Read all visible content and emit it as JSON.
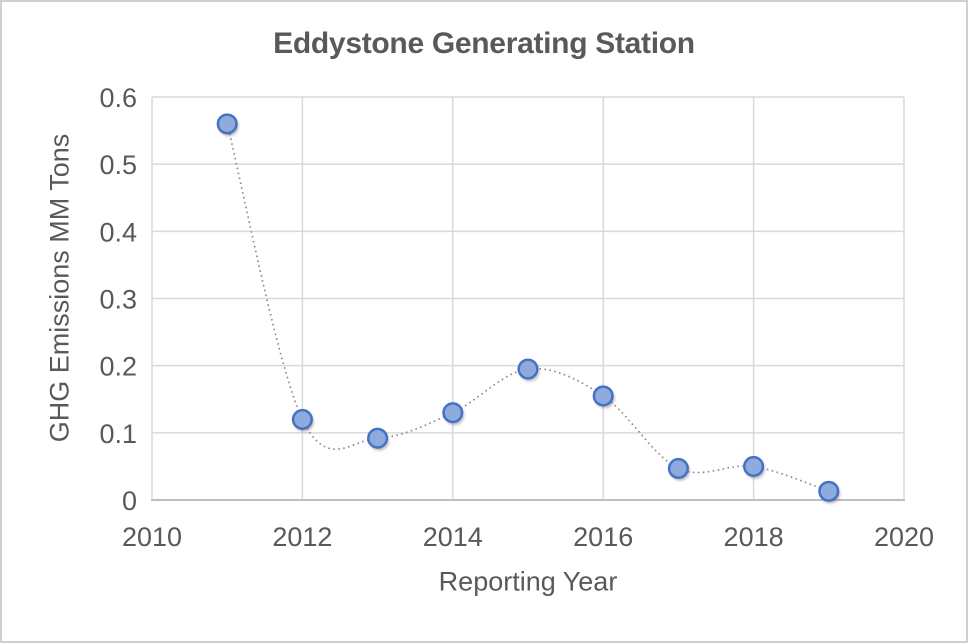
{
  "chart_data": {
    "type": "scatter",
    "title": "Eddystone Generating Station",
    "xlabel": "Reporting Year",
    "ylabel": "GHG Emissions MM Tons",
    "x": [
      2011,
      2012,
      2013,
      2014,
      2015,
      2016,
      2017,
      2018,
      2019
    ],
    "y": [
      0.56,
      0.12,
      0.092,
      0.13,
      0.195,
      0.155,
      0.047,
      0.05,
      0.013
    ],
    "xlim": [
      2010,
      2020
    ],
    "ylim": [
      0,
      0.6
    ],
    "x_ticks": [
      2010,
      2012,
      2014,
      2016,
      2018,
      2020
    ],
    "y_ticks": [
      0,
      0.1,
      0.2,
      0.3,
      0.4,
      0.5,
      0.6
    ],
    "grid": true,
    "legend": "none",
    "line_style": "dotted-smooth",
    "marker": "circle",
    "colors": {
      "marker_fill": "#8FAADC",
      "marker_border": "#4472C4",
      "line": "#8C8C8C",
      "gridline": "#D9D9D9",
      "axis_line": "#BFBFBF",
      "text": "#595959"
    }
  }
}
